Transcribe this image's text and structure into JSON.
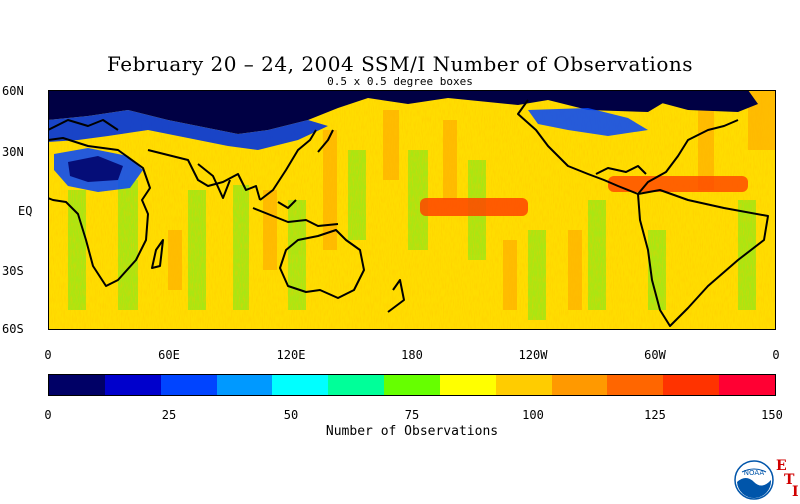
{
  "title": "February 20 – 24, 2004 SSM/I Number of Observations",
  "subtitle": "0.5 x 0.5 degree boxes",
  "map": {
    "lat_labels": [
      "60N",
      "30N",
      "EQ",
      "30S",
      "60S"
    ],
    "lon_labels": [
      "0",
      "60E",
      "120E",
      "180",
      "120W",
      "60W",
      "0"
    ]
  },
  "colorbar": {
    "colors": [
      "#000066",
      "#0000cc",
      "#0044ff",
      "#0099ff",
      "#00ffff",
      "#00ff99",
      "#66ff00",
      "#ffff00",
      "#ffcc00",
      "#ff9900",
      "#ff6600",
      "#ff3300",
      "#ff0033"
    ],
    "tick_labels": [
      "0",
      "25",
      "50",
      "75",
      "100",
      "125",
      "150"
    ],
    "label": "Number of Observations"
  },
  "logo": {
    "icon": "noaa-logo-icon",
    "text": "NOAA",
    "letters": [
      "E",
      "T",
      "I"
    ]
  }
}
